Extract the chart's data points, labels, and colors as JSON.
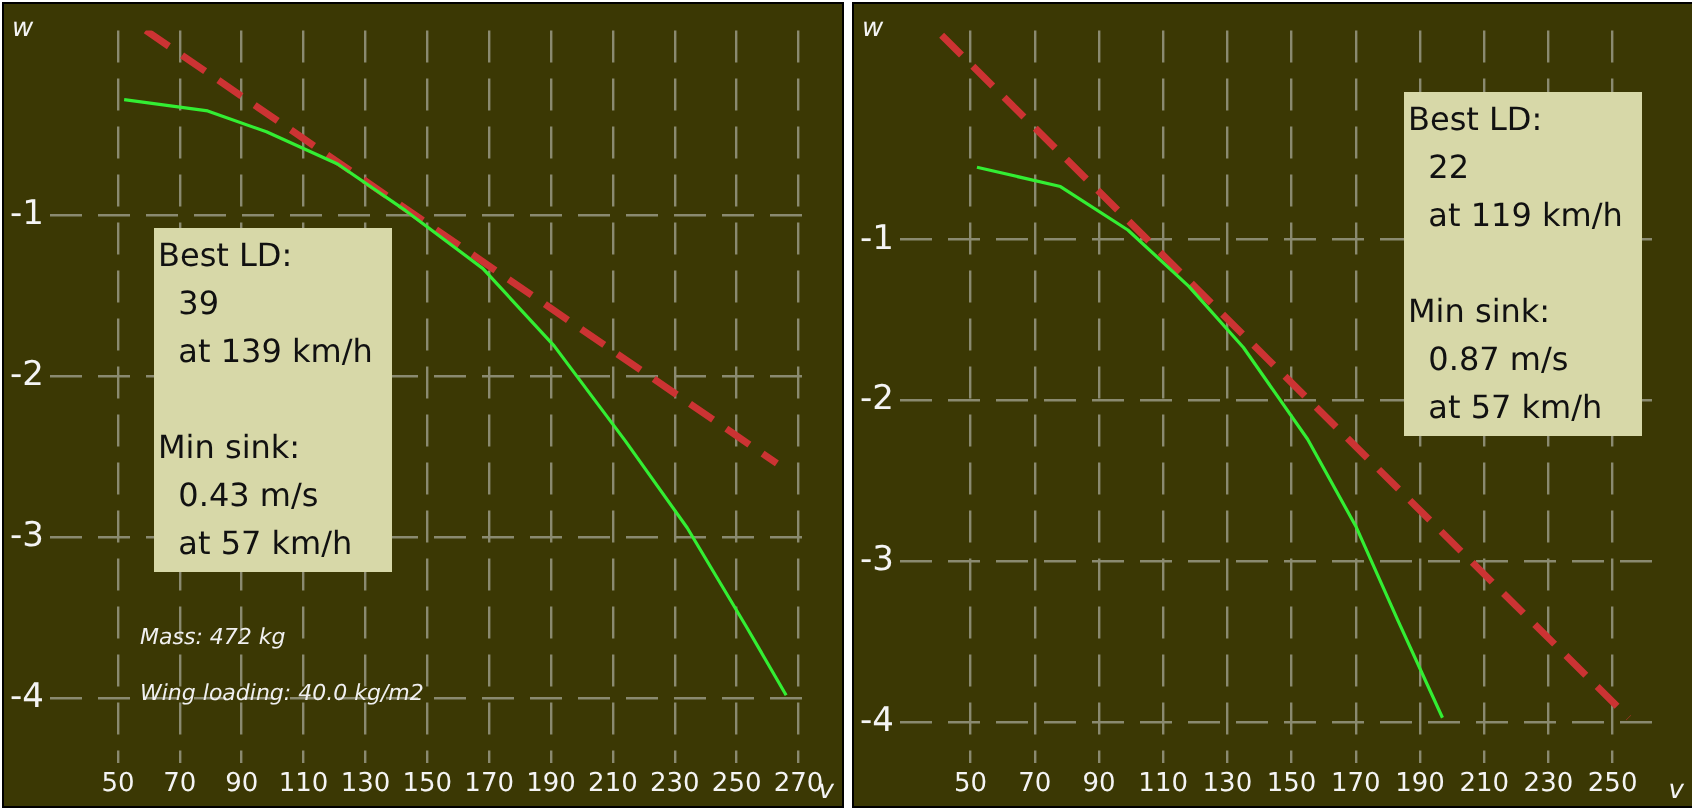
{
  "chart_data": [
    {
      "type": "line",
      "xlabel": "v",
      "ylabel": "w",
      "xlim": [
        28,
        275
      ],
      "xticks": [
        50,
        70,
        90,
        110,
        130,
        150,
        170,
        190,
        210,
        230,
        250,
        270
      ],
      "ylim": [
        -4.4,
        0.15
      ],
      "yticks": [
        -4,
        -3,
        -2,
        -1
      ],
      "grid": true,
      "legend": false,
      "marker": "none",
      "annotations": [
        "Best LD:\n  39\n  at 139 km/h\n\nMin sink:\n  0.43 m/s\n  at 57 km/h",
        "Mass: 472 kg",
        "Wing loading: 40.0 kg/m2"
      ],
      "series": [
        {
          "color": "#33ee33",
          "line_style": "solid",
          "x": [
            52,
            79,
            98,
            121,
            143,
            168,
            191,
            214,
            234,
            253,
            266
          ],
          "values": [
            -0.28,
            -0.35,
            -0.48,
            -0.68,
            -0.97,
            -1.33,
            -1.81,
            -2.4,
            -2.94,
            -3.55,
            -3.98
          ]
        },
        {
          "color": "#cc3333",
          "line_style": "dashed",
          "x": [
            59,
            263
          ],
          "values": [
            0.15,
            -2.54
          ]
        }
      ]
    },
    {
      "type": "line",
      "xlabel": "v",
      "ylabel": "w",
      "xlim": [
        28,
        266
      ],
      "xticks": [
        50,
        70,
        90,
        110,
        130,
        150,
        170,
        190,
        210,
        230,
        250
      ],
      "ylim": [
        -4.25,
        0.3
      ],
      "yticks": [
        -4,
        -3,
        -2,
        -1
      ],
      "grid": true,
      "legend": false,
      "marker": "none",
      "annotations": [
        "Best LD:\n  22\n  at 119 km/h\n\nMin sink:\n  0.87 m/s\n  at 57 km/h"
      ],
      "series": [
        {
          "color": "#33ee33",
          "line_style": "solid",
          "x": [
            52,
            78,
            99,
            118,
            135,
            155,
            170,
            183,
            197
          ],
          "values": [
            -0.55,
            -0.67,
            -0.94,
            -1.29,
            -1.67,
            -2.24,
            -2.78,
            -3.36,
            -3.97
          ]
        },
        {
          "color": "#cc3333",
          "line_style": "dashed",
          "x": [
            41,
            255
          ],
          "values": [
            0.27,
            -3.97
          ]
        }
      ]
    }
  ]
}
